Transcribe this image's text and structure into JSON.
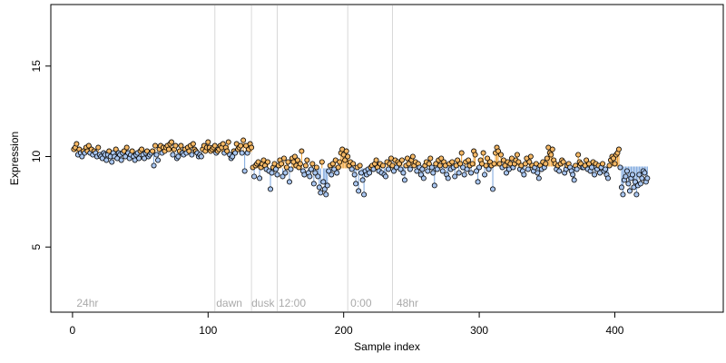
{
  "chart_data": {
    "type": "scatter",
    "title": "",
    "xlabel": "Sample index",
    "ylabel": "Expression",
    "xlim": [
      -16,
      480
    ],
    "ylim": [
      1.4,
      18.4
    ],
    "xticks": [
      0,
      100,
      200,
      300,
      400
    ],
    "yticks": [
      5,
      10,
      15
    ],
    "grid": false,
    "legend": "none",
    "colors": {
      "point_above": "#f5b865",
      "point_below": "#a9c6f0",
      "segment_above": "#f0a030",
      "segment_below": "#7aa5dd",
      "divider": "#d8d8d8",
      "annotation": "#aaaaaa"
    },
    "annotations": [
      {
        "label": "24hr",
        "x": 3
      },
      {
        "label": "dawn",
        "x": 106
      },
      {
        "label": "dusk",
        "x": 132
      },
      {
        "label": "12:00",
        "x": 152
      },
      {
        "label": "0:00",
        "x": 205
      },
      {
        "label": "48hr",
        "x": 239
      }
    ],
    "dividers": [
      105,
      132,
      151,
      203,
      236
    ],
    "segments": [
      {
        "start": 1,
        "end": 132,
        "mean": 10.25
      },
      {
        "start": 133,
        "end": 235,
        "mean": 9.35
      },
      {
        "start": 236,
        "end": 465,
        "mean": 9.45
      }
    ],
    "series": [
      {
        "values": [
          10.4,
          10.5,
          10.7,
          10.1,
          10.4,
          10.2,
          10.0,
          10.3,
          10.2,
          10.5,
          10.3,
          10.6,
          10.2,
          10.4,
          10.1,
          10.3,
          10.2,
          10.0,
          10.5,
          10.1,
          10.0,
          9.9,
          10.2,
          10.1,
          9.8,
          10.1,
          10.3,
          10.0,
          9.7,
          10.2,
          10.0,
          10.4,
          9.9,
          10.2,
          10.1,
          9.8,
          10.2,
          10.3,
          10.0,
          10.5,
          10.2,
          9.9,
          10.1,
          10.3,
          10.0,
          9.8,
          10.1,
          10.2,
          9.9,
          10.3,
          10.4,
          10.1,
          9.9,
          10.2,
          10.3,
          10.0,
          10.1,
          10.2,
          10.3,
          9.5,
          10.6,
          10.1,
          9.8,
          10.4,
          10.6,
          10.2,
          10.5,
          10.3,
          10.5,
          10.6,
          10.4,
          10.7,
          10.8,
          10.1,
          10.4,
          10.6,
          9.9,
          10.0,
          10.3,
          10.6,
          10.2,
          10.1,
          10.4,
          10.2,
          10.5,
          10.3,
          10.6,
          10.1,
          10.7,
          10.4,
          10.3,
          10.2,
          10.0,
          10.1,
          10.0,
          10.4,
          10.6,
          10.3,
          10.5,
          10.8,
          10.5,
          10.3,
          10.4,
          10.5,
          10.6,
          10.2,
          10.3,
          10.4,
          10.6,
          10.5,
          10.7,
          10.2,
          10.5,
          10.3,
          10.8,
          10.1,
          9.9,
          10.0,
          10.3,
          10.2,
          10.7,
          10.4,
          10.5,
          10.6,
          10.2,
          10.9,
          9.2,
          10.6,
          10.2,
          10.4,
          10.7,
          10.5,
          9.4,
          8.9,
          9.5,
          9.6,
          9.7,
          8.8,
          9.4,
          9.6,
          9.8,
          9.5,
          9.3,
          9.7,
          9.2,
          8.2,
          9.1,
          9.4,
          9.6,
          9.3,
          9.0,
          9.5,
          9.8,
          9.6,
          8.9,
          9.9,
          9.1,
          9.4,
          9.7,
          8.6,
          9.3,
          9.9,
          9.7,
          10.0,
          9.5,
          9.8,
          9.4,
          9.6,
          10.3,
          9.2,
          9.0,
          9.5,
          9.8,
          9.1,
          8.9,
          9.3,
          9.6,
          8.5,
          9.1,
          9.4,
          8.9,
          8.3,
          8.0,
          9.7,
          8.6,
          8.2,
          7.9,
          8.4,
          9.2,
          9.5,
          9.0,
          9.6,
          9.3,
          9.8,
          9.1,
          9.4,
          9.7,
          10.2,
          10.4,
          10.1,
          9.8,
          10.3,
          10.0,
          9.5,
          9.7,
          9.3,
          9.6,
          9.0,
          8.5,
          9.4,
          8.1,
          9.5,
          9.1,
          8.7,
          7.9,
          9.2,
          9.0,
          9.3,
          9.1,
          9.4,
          9.5,
          9.3,
          9.6,
          9.8,
          9.4,
          9.2,
          9.6,
          9.1,
          9.5,
          9.0,
          8.9,
          9.7,
          9.3,
          9.6,
          9.9,
          9.5,
          9.2,
          9.8,
          9.4,
          9.7,
          9.6,
          9.3,
          9.8,
          9.1,
          8.7,
          9.5,
          9.9,
          9.6,
          9.3,
          9.8,
          10.0,
          9.5,
          9.7,
          9.2,
          9.6,
          9.4,
          9.0,
          9.3,
          8.8,
          9.5,
          9.7,
          9.2,
          9.6,
          9.9,
          9.4,
          9.1,
          8.4,
          9.6,
          9.3,
          9.8,
          9.5,
          9.9,
          9.2,
          9.7,
          9.5,
          9.0,
          8.8,
          9.6,
          9.3,
          9.7,
          9.4,
          8.9,
          9.5,
          9.8,
          9.1,
          9.6,
          10.2,
          9.4,
          9.0,
          9.7,
          9.3,
          9.8,
          9.5,
          9.1,
          9.6,
          10.3,
          10.1,
          9.2,
          8.6,
          9.4,
          9.8,
          9.6,
          10.2,
          9.0,
          9.5,
          9.9,
          9.3,
          9.7,
          9.5,
          8.2,
          9.6,
          10.2,
          10.5,
          10.3,
          9.6,
          10.1,
          9.4,
          9.8,
          9.5,
          9.1,
          9.7,
          9.3,
          9.6,
          9.9,
          9.4,
          9.6,
          9.8,
          10.1,
          9.7,
          9.3,
          9.5,
          9.2,
          9.0,
          9.6,
          9.9,
          9.3,
          9.7,
          10.0,
          9.5,
          9.2,
          9.4,
          9.6,
          9.1,
          8.8,
          9.5,
          9.3,
          9.7,
          9.4,
          9.6,
          9.9,
          10.5,
          10.2,
          10.1,
          10.4,
          9.8,
          9.6,
          9.3,
          9.5,
          9.2,
          9.6,
          9.8,
          9.7,
          9.1,
          9.3,
          9.5,
          9.6,
          9.4,
          9.2,
          9.0,
          8.7,
          9.5,
          9.3,
          10.1,
          9.7,
          9.6,
          9.4,
          9.4,
          9.5,
          9.8,
          9.3,
          9.6,
          9.2,
          9.4,
          9.7,
          9.0,
          9.6,
          9.3,
          9.5,
          9.1,
          9.4,
          9.6,
          9.2,
          9.3,
          9.0,
          8.8,
          9.5,
          9.8,
          10.0,
          9.9,
          9.6,
          10.1,
          10.2,
          10.4,
          9.4,
          8.3,
          7.9,
          8.7,
          8.9,
          9.2,
          8.5,
          8.1,
          8.8,
          9.0,
          8.3,
          8.6,
          7.9,
          8.4,
          9.0,
          8.5,
          8.8,
          9.2,
          9.1,
          8.6,
          8.8
        ]
      }
    ]
  }
}
